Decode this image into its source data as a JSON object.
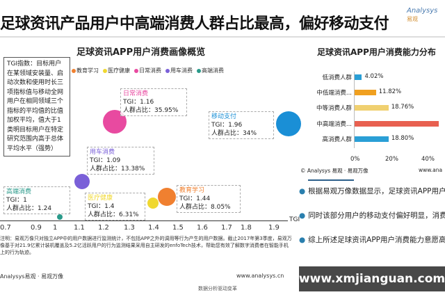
{
  "header": {
    "title": "足球资讯产品用户中高端消费人群占比最高，偏好移动支付",
    "logo": "Analysys",
    "logo_sub": "易观"
  },
  "bubble_chart": {
    "title": "足球资讯APP用户消费画像概览",
    "legend": [
      {
        "label": "移动支付",
        "color": "#1a8fd6"
      },
      {
        "label": "教育学习",
        "color": "#f08030"
      },
      {
        "label": "医疗健康",
        "color": "#f0d830"
      },
      {
        "label": "日常消费",
        "color": "#e84aa0"
      },
      {
        "label": "用车消费",
        "color": "#7a60d8"
      },
      {
        "label": "高端消费",
        "color": "#2a9a8a"
      }
    ],
    "tgi_note": "TGI指数：目标用户在某领域安装量、启动次数和使用时长三项指标值与移动全网用户在相同领域三个指标的平均值的比值加权平均，值大于1类明目标用户在特定研究范围内高于总体平均水平（强势）",
    "points": [
      {
        "name": "日常消费",
        "tgi_label": "TGI：1.16",
        "share_label": "人群占比：35.95%",
        "tgi": 1.16,
        "share": 35.95
      },
      {
        "name": "移动支付",
        "tgi_label": "TGI：1.96",
        "share_label": "人群占比：34%",
        "tgi": 1.96,
        "share": 34
      },
      {
        "name": "用车消费",
        "tgi_label": "TGI：1.09",
        "share_label": "人群占比：13.38%",
        "tgi": 1.09,
        "share": 13.38
      },
      {
        "name": "高端消费",
        "tgi_label": "TGI：1",
        "share_label": "人群占比：1.24",
        "tgi": 1,
        "share": 1.24
      },
      {
        "name": "医疗健康",
        "tgi_label": "TGI：1.4",
        "share_label": "人群占比：6.31%",
        "tgi": 1.4,
        "share": 6.31
      },
      {
        "name": "教育学习",
        "tgi_label": "TGI：1.44",
        "share_label": "人群占比：8.05%",
        "tgi": 1.44,
        "share": 8.05
      }
    ],
    "x_ticks": [
      "0.7",
      "0.9",
      "1",
      "1.1",
      "1.2",
      "1.3",
      "1.4",
      "1.5",
      "1.6",
      "1.7",
      "1.8",
      "1.9"
    ],
    "x_label": "TGI",
    "note": "注明：易观万像只对独立APP中的用户数据进行监测统计，不包括APP之外的调用等行为产生的用户数据。截止2017年第3季度，易观万像基于对21.9亿累计装机覆盖及5.2亿活跃用户的行为监测结果采用自主研发的enfoTech技术，帮助您有效了解数字消费者在智能手机上的行为轨迹。",
    "footer_left": "Analysys易观 · 易观万像",
    "footer_right": "www.analysys.cn",
    "footer_center": "数据分析驱动变革"
  },
  "chart_data": {
    "type": "bar",
    "title": "足球资讯APP用户消费能力分布",
    "categories": [
      "低消费人群",
      "中低端消费...",
      "中等消费人群",
      "中高端消费...",
      "高消费人群"
    ],
    "values": [
      4.02,
      11.82,
      18.76,
      46.6,
      18.8
    ],
    "value_labels": [
      "4.02%",
      "11.82%",
      "18.76%",
      "",
      "18.80%"
    ],
    "colors": [
      "#2a9fd6",
      "#f0a020",
      "#f0d070",
      "#e86050",
      "#2a9fd6"
    ],
    "x_ticks": [
      "0%",
      "20%",
      "40%"
    ],
    "xlim": [
      0,
      50
    ],
    "footer_left": "© Analysys 易观 · 易观万像",
    "footer_right": "www.ana"
  },
  "bullets": [
    "根据易观万像数据显示，足球资讯APP用户更多集中在中高消费人群上。该部分用户购买能力。",
    "同时该部分用户的移动支付偏好明显，消费人群占比最高。",
    "综上所述足球资讯APP用户消费能力意愿高。可针对该部分用户的偏好设计消费场景"
  ],
  "watermark": "www.xmjianguan.com"
}
